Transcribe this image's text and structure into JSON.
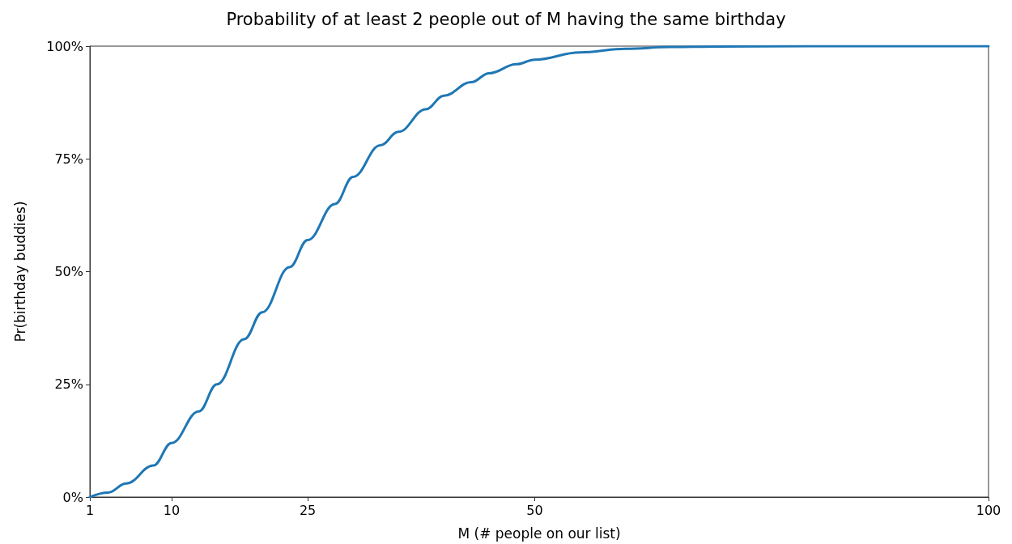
{
  "chart_data": {
    "type": "line",
    "title": "Probability of at least 2 people out of M having the same birthday",
    "xlabel": "M (# people on our list)",
    "ylabel": "Pr(birthday buddies)",
    "x": [
      1,
      3,
      5,
      8,
      10,
      13,
      15,
      18,
      20,
      23,
      25,
      28,
      30,
      33,
      35,
      38,
      40,
      43,
      45,
      48,
      50,
      55,
      60,
      65,
      70,
      80,
      90,
      100
    ],
    "series": [
      {
        "color": "#1f77b4",
        "values": [
          0,
          1,
          3,
          7,
          12,
          19,
          25,
          35,
          41,
          51,
          57,
          65,
          71,
          78,
          81,
          86,
          89,
          92,
          94,
          96,
          97,
          98.6,
          99.4,
          99.8,
          99.9,
          100,
          100,
          100
        ]
      }
    ],
    "xlim": [
      1,
      100
    ],
    "xticks": [
      1,
      10,
      25,
      50,
      100
    ],
    "ylim": [
      0,
      100
    ],
    "yticks": [
      {
        "value": 0,
        "label": "0%"
      },
      {
        "value": 25,
        "label": "25%"
      },
      {
        "value": 50,
        "label": "50%"
      },
      {
        "value": 75,
        "label": "75%"
      },
      {
        "value": 100,
        "label": "100%"
      }
    ],
    "grid": false,
    "marker": "none",
    "line_style": "solid"
  }
}
